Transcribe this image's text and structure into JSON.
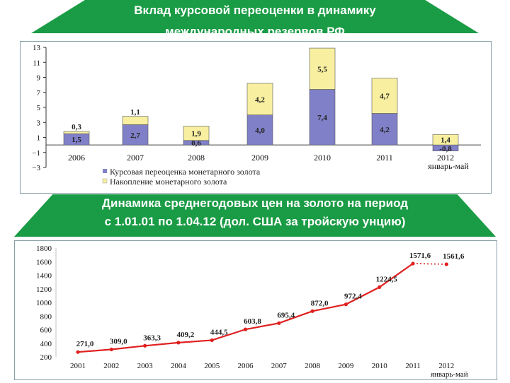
{
  "slide": {
    "title_top": [
      "Вклад курсовой переоценки в динамику",
      "международных резервов РФ"
    ],
    "title_bottom": [
      "Динамика среднегодовых цен на золото на период",
      "с 1.01.01 по 1.04.12 (дол. США за тройскую унцию)"
    ]
  },
  "chart_data": [
    {
      "type": "bar",
      "stacked": true,
      "categories": [
        "2006",
        "2007",
        "2008",
        "2009",
        "2010",
        "2011",
        "2012"
      ],
      "category_sublabels": [
        "",
        "",
        "",
        "",
        "",
        "",
        "январь-май"
      ],
      "yticks": [
        13,
        11,
        9,
        7,
        5,
        3,
        1,
        -1,
        -3
      ],
      "ytick_labels": [
        "13",
        "11",
        "9",
        "7",
        "5",
        "3",
        "1",
        "−1",
        "−3"
      ],
      "ylim": [
        -3,
        13
      ],
      "series": [
        {
          "name": "Курсовая переоценка монетарного золота",
          "color": "#8080c8",
          "values": [
            1.5,
            2.7,
            0.6,
            4.0,
            7.4,
            4.2,
            -0.8
          ],
          "labels": [
            "1,5",
            "2,7",
            "0,6",
            "4,0",
            "7,4",
            "4,2",
            "-0,8"
          ]
        },
        {
          "name": "Накопление монетарного золота",
          "color": "#f8f0a0",
          "values": [
            0.3,
            1.1,
            1.9,
            4.2,
            5.5,
            4.7,
            1.4
          ],
          "labels": [
            "0,3",
            "1,1",
            "1,9",
            "4,2",
            "5,5",
            "4,7",
            "1,4"
          ]
        }
      ],
      "legend": "bottom"
    },
    {
      "type": "line",
      "x": [
        "2001",
        "2002",
        "2003",
        "2004",
        "2005",
        "2006",
        "2007",
        "2008",
        "2009",
        "2010",
        "2011",
        "2012"
      ],
      "x_sublabel_last": "январь-май",
      "yticks": [
        1800,
        1600,
        1400,
        1200,
        1000,
        800,
        600,
        400,
        200
      ],
      "ylim": [
        200,
        1800
      ],
      "series": [
        {
          "color": "#e02020",
          "values": [
            271.0,
            309.0,
            363.3,
            409.2,
            444.5,
            603.8,
            695.4,
            872.0,
            972.4,
            1224.5,
            1571.6,
            1561.6
          ],
          "labels": [
            "271,0",
            "309,0",
            "363,3",
            "409,2",
            "444,5",
            "603,8",
            "695,4",
            "872,0",
            "972,4",
            "1224,5",
            "1571,6",
            "1561,6"
          ]
        }
      ]
    }
  ]
}
